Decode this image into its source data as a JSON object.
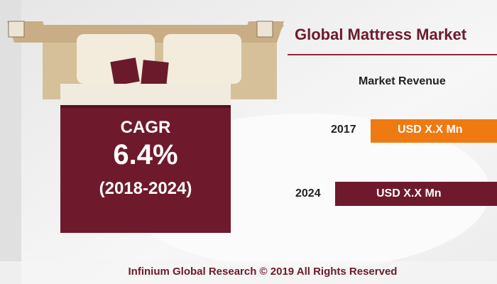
{
  "header": {
    "title": "Global Mattress Market",
    "subtitle": "Market Revenue"
  },
  "revenue": [
    {
      "year": "2017",
      "label": "USD X.X Mn"
    },
    {
      "year": "2024",
      "label": "USD X.X Mn"
    }
  ],
  "cagr": {
    "label": "CAGR",
    "value": "6.4%",
    "period": "(2018-2024)"
  },
  "footer": "Infinium Global Research © 2019 All Rights Reserved"
}
